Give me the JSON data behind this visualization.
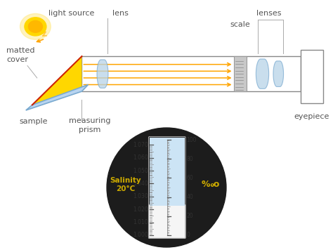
{
  "bg_color": "#ffffff",
  "sun_color": "#FFD700",
  "ray_color": "#FFA500",
  "prism_color": "#FFD700",
  "lens_color": "#B8D4E8",
  "scale_bg_top": "#cce4f5",
  "scale_bg_bottom": "#f0f0f0",
  "eyepiece_color": "#f0f0f0",
  "label_color": "#555555",
  "salinity_color": "#ccaa00",
  "permil_color": "#ccaa00",
  "black_circle": "#1c1c1c",
  "light_source_label": "light source",
  "lens_label": "lens",
  "lenses_label": "lenses",
  "scale_label": "scale",
  "eyepiece_label": "eyepiece",
  "sample_label": "sample",
  "measuring_prism_label": "measuring\nprism",
  "matted_cover_label": "matted\ncover",
  "salinity_label": "Salinity\n20°C",
  "permil_label": "‰o"
}
